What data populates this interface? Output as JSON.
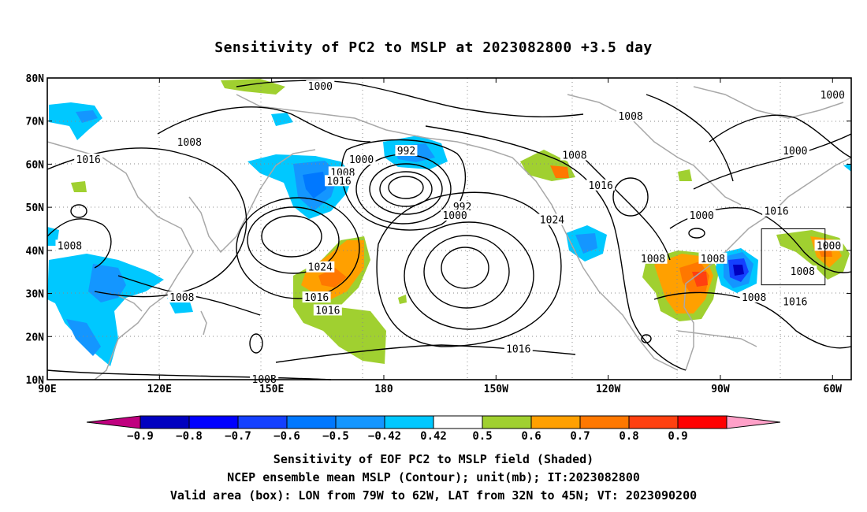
{
  "title": "Sensitivity of PC2 to MSLP at 2023082800 +3.5 day",
  "map": {
    "lat_ticks": [
      "80N",
      "70N",
      "60N",
      "50N",
      "40N",
      "30N",
      "20N",
      "10N"
    ],
    "lon_ticks": [
      "90E",
      "120E",
      "150E",
      "180",
      "150W",
      "120W",
      "90W",
      "60W"
    ],
    "lon_range": [
      90,
      305
    ],
    "lat_range": [
      10,
      80
    ],
    "valid_box": {
      "lon_min": 281,
      "lon_max": 298,
      "lat_min": 32,
      "lat_max": 45
    },
    "contour_color": "#000000",
    "coastline_color": "#a8a8a8",
    "grid_style": "dotted",
    "contour_labels": [
      {
        "text": "1000",
        "lon": 163,
        "lat": 78
      },
      {
        "text": "1000",
        "lon": 300,
        "lat": 76
      },
      {
        "text": "1008",
        "lon": 128,
        "lat": 65
      },
      {
        "text": "1016",
        "lon": 101,
        "lat": 61
      },
      {
        "text": "1000",
        "lon": 174,
        "lat": 61
      },
      {
        "text": "992",
        "lon": 186,
        "lat": 63
      },
      {
        "text": "1008",
        "lon": 246,
        "lat": 71
      },
      {
        "text": "1008",
        "lon": 231,
        "lat": 62
      },
      {
        "text": "1000",
        "lon": 290,
        "lat": 63
      },
      {
        "text": "1008",
        "lon": 169,
        "lat": 58
      },
      {
        "text": "1016",
        "lon": 168,
        "lat": 56
      },
      {
        "text": "1016",
        "lon": 238,
        "lat": 55
      },
      {
        "text": "992",
        "lon": 201,
        "lat": 50
      },
      {
        "text": "1000",
        "lon": 199,
        "lat": 48
      },
      {
        "text": "1024",
        "lon": 225,
        "lat": 47
      },
      {
        "text": "1000",
        "lon": 265,
        "lat": 48
      },
      {
        "text": "1016",
        "lon": 285,
        "lat": 49
      },
      {
        "text": "1008",
        "lon": 96,
        "lat": 41
      },
      {
        "text": "1024",
        "lon": 163,
        "lat": 36
      },
      {
        "text": "1008",
        "lon": 252,
        "lat": 38
      },
      {
        "text": "1008",
        "lon": 268,
        "lat": 38
      },
      {
        "text": "1000",
        "lon": 299,
        "lat": 41
      },
      {
        "text": "1008",
        "lon": 292,
        "lat": 35
      },
      {
        "text": "1016",
        "lon": 162,
        "lat": 29
      },
      {
        "text": "1016",
        "lon": 165,
        "lat": 26
      },
      {
        "text": "1008",
        "lon": 126,
        "lat": 29
      },
      {
        "text": "1008",
        "lon": 279,
        "lat": 29
      },
      {
        "text": "1016",
        "lon": 290,
        "lat": 28
      },
      {
        "text": "1016",
        "lon": 216,
        "lat": 17
      },
      {
        "text": "1008",
        "lon": 148,
        "lat": 10
      }
    ]
  },
  "colorbar": {
    "colors": [
      "#c0007f",
      "#0000c0",
      "#0000ff",
      "#1440ff",
      "#0078ff",
      "#1496ff",
      "#00c8ff",
      "#ffffff",
      "#a0d030",
      "#ffa000",
      "#ff7800",
      "#ff4010",
      "#ff0000",
      "#ffa0c8"
    ],
    "labels": [
      "−0.9",
      "−0.8",
      "−0.7",
      "−0.6",
      "−0.5",
      "−0.42",
      "0.42",
      "0.5",
      "0.6",
      "0.7",
      "0.8",
      "0.9"
    ]
  },
  "captions": {
    "line1": "Sensitivity of EOF PC2 to MSLP field (Shaded)",
    "line2": "NCEP ensemble mean MSLP (Contour); unit(mb); IT:2023082800",
    "line3": "Valid area (box): LON from 79W to 62W, LAT from 32N to 45N; VT: 2023090200"
  }
}
